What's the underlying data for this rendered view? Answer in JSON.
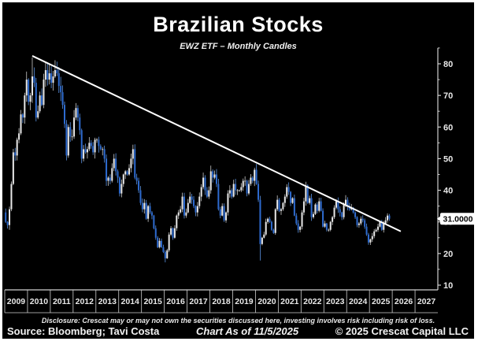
{
  "header": {
    "title": "Brazilian Stocks",
    "subtitle": "EWZ ETF – Monthly Candles"
  },
  "footer": {
    "disclosure": "Disclosure: Crescat may or may not own the securities discussed here, investing involves risk including risk of loss.",
    "source": "Source: Bloomberg; Tavi Costa",
    "as_of": "Chart As of 11/5/2025",
    "copyright": "© 2025 Crescat Capital LLC"
  },
  "chart_data": {
    "type": "candlestick",
    "title": "Brazilian Stocks",
    "subtitle": "EWZ ETF – Monthly Candles",
    "frequency": "monthly",
    "start_month": "2009-01",
    "first_open": 33,
    "closes": [
      30,
      29,
      34,
      42,
      52,
      51,
      56,
      58,
      64,
      63,
      70,
      75,
      68,
      70,
      76,
      74,
      63,
      65,
      70,
      67,
      75,
      78,
      75,
      77,
      74,
      76,
      78,
      77,
      73,
      71,
      67,
      61,
      51,
      60,
      57,
      57,
      63,
      66,
      63,
      59,
      50,
      53,
      52,
      53,
      55,
      54,
      52,
      56,
      56,
      54,
      53,
      53,
      50,
      43,
      44,
      43,
      47,
      50,
      46,
      44,
      39,
      42,
      45,
      46,
      45,
      47,
      50,
      53,
      44,
      43,
      40,
      36,
      34,
      36,
      31,
      35,
      33,
      32,
      28,
      25,
      22,
      24,
      22,
      20.5,
      18.5,
      21,
      26,
      28,
      25,
      28,
      32,
      33,
      34,
      38,
      32,
      33,
      36,
      38,
      37,
      35,
      33,
      35,
      38,
      41,
      44,
      40,
      38,
      40,
      46,
      44,
      45,
      42,
      34,
      32,
      35,
      30.5,
      33,
      39,
      40,
      38,
      42,
      40,
      40,
      40,
      41,
      43,
      43,
      39,
      42,
      44,
      43,
      46.5,
      42,
      37,
      23,
      25,
      26,
      30,
      31,
      30,
      27.5,
      26.5,
      34,
      37,
      33.5,
      34,
      36,
      38,
      41,
      39.5,
      36,
      37.5,
      32,
      29.5,
      27.5,
      28.5,
      33,
      36.5,
      41.5,
      36,
      37.5,
      31.5,
      32.5,
      35.5,
      33.5,
      36.5,
      33.5,
      28.5,
      29.5,
      27.5,
      27.5,
      30,
      31.5,
      34.5,
      36.5,
      34,
      33,
      31.5,
      35.5,
      37,
      35,
      34,
      34.5,
      33,
      31.5,
      29,
      29.5,
      31,
      30.5,
      28.5,
      26,
      23.5,
      24.5,
      25.5,
      27,
      27.5,
      28.5,
      30,
      27.5,
      29.5,
      30.5,
      32,
      31
    ],
    "wick_overrides": {
      "2009-03": {
        "low": 27.5
      },
      "2010-03": {
        "high": 82
      },
      "2010-11": {
        "high": 80.5
      },
      "2016-01": {
        "low": 17.2
      },
      "2018-01": {
        "high": 47.8
      },
      "2020-03": {
        "low": 17.8
      },
      "2025-11": {
        "high": 32.5
      }
    },
    "x_years": [
      "2009",
      "2010",
      "2011",
      "2012",
      "2013",
      "2014",
      "2015",
      "2016",
      "2017",
      "2018",
      "2019",
      "2020",
      "2021",
      "2022",
      "2023",
      "2024",
      "2025",
      "2026",
      "2027"
    ],
    "y_ticks": [
      10,
      20,
      30,
      40,
      50,
      60,
      70,
      80
    ],
    "y_minor_step": 5,
    "ylim": [
      10,
      85
    ],
    "legend_position": "none",
    "grid": false,
    "last_price": 31.0,
    "last_price_label": "31.0000",
    "trendline": {
      "start": {
        "month": "2010-03",
        "value": 82.5
      },
      "end": {
        "month": "2026-05",
        "value": 27.0
      }
    },
    "colors": {
      "up": "#e9e9e9",
      "up_wick": "#c9c9c9",
      "down": "#2e6bd0",
      "down_wick": "#5b92e0",
      "trendline": "#ffffff",
      "axis": "#cfcfcf",
      "tick_label": "#e8e8e8",
      "background": "#000000",
      "badge_bg": "#ffffff",
      "badge_text": "#000000"
    }
  }
}
